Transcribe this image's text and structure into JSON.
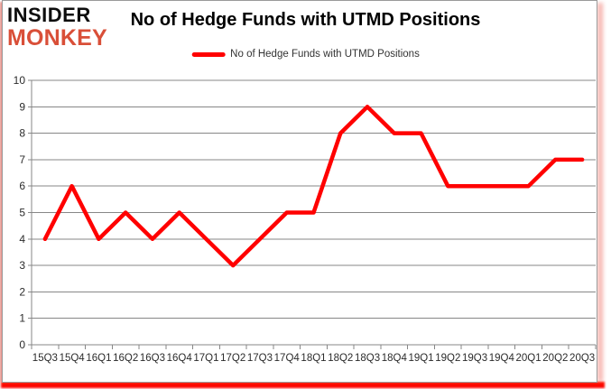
{
  "logo": {
    "line1": "INSIDER",
    "line2": "MONKEY"
  },
  "title": "No of Hedge Funds with UTMD Positions",
  "legend": {
    "label": "No of Hedge Funds with UTMD Positions"
  },
  "chart_data": {
    "type": "line",
    "title": "No of Hedge Funds with UTMD Positions",
    "series_name": "No of Hedge Funds with UTMD Positions",
    "categories": [
      "15Q3",
      "15Q4",
      "16Q1",
      "16Q2",
      "16Q3",
      "16Q4",
      "17Q1",
      "17Q2",
      "17Q3",
      "17Q4",
      "18Q1",
      "18Q2",
      "18Q3",
      "18Q4",
      "19Q1",
      "19Q2",
      "19Q3",
      "19Q4",
      "20Q1",
      "20Q2",
      "20Q3"
    ],
    "values": [
      4,
      6,
      4,
      5,
      4,
      5,
      4,
      3,
      4,
      5,
      5,
      8,
      9,
      8,
      8,
      6,
      6,
      6,
      6,
      7,
      7
    ],
    "ylim": [
      0,
      10
    ],
    "ytick_step": 1,
    "grid": true,
    "legend_position": "top"
  },
  "colors": {
    "line": "#ff0000",
    "grid": "#878787",
    "axis_text": "#2b2b2b",
    "title_text": "#000000",
    "logo_insider": "#0d0d0d",
    "logo_monkey": "#d94f38",
    "glow_red": "#ff0000"
  }
}
